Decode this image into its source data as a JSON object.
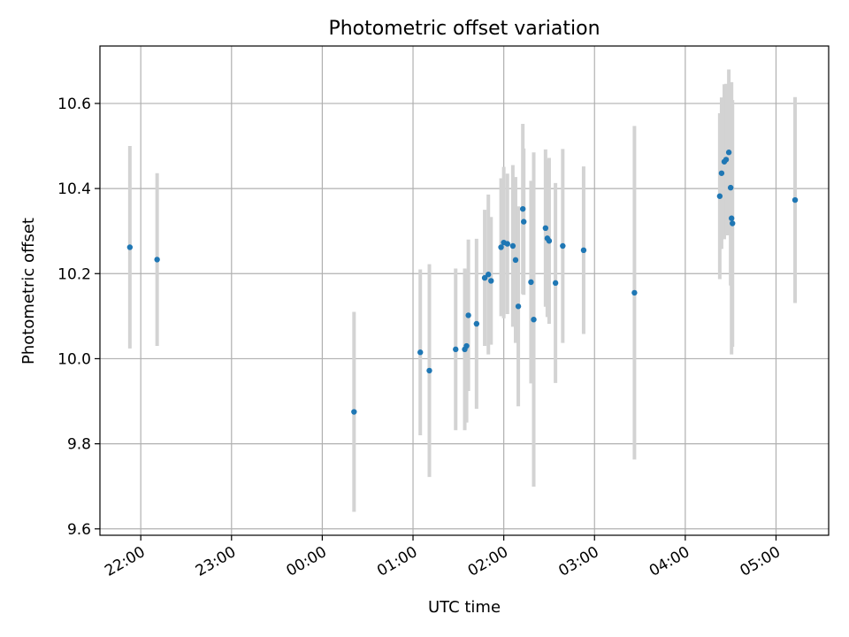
{
  "chart_data": {
    "type": "scatter",
    "title": "Photometric offset variation",
    "xlabel": "UTC time",
    "ylabel": "Photometric offset",
    "x_unit": "hours (UTC, relative to 00:00)",
    "xlim": [
      -2.45,
      5.58
    ],
    "ylim": [
      9.585,
      10.735
    ],
    "x_ticks": [
      -2,
      -1,
      0,
      1,
      2,
      3,
      4,
      5
    ],
    "x_tick_labels": [
      "22:00",
      "23:00",
      "00:00",
      "01:00",
      "02:00",
      "03:00",
      "04:00",
      "05:00"
    ],
    "y_ticks": [
      9.6,
      9.8,
      10.0,
      10.2,
      10.4,
      10.6
    ],
    "y_tick_labels": [
      "9.6",
      "9.8",
      "10.0",
      "10.2",
      "10.4",
      "10.6"
    ],
    "grid": true,
    "marker_color": "#1f77b4",
    "errorbar_color": "#d3d3d3",
    "points": [
      {
        "x": -2.12,
        "y": 10.262,
        "err": 0.238
      },
      {
        "x": -1.82,
        "y": 10.233,
        "err": 0.203
      },
      {
        "x": 0.35,
        "y": 9.875,
        "err": 0.235
      },
      {
        "x": 1.08,
        "y": 10.015,
        "err": 0.195
      },
      {
        "x": 1.18,
        "y": 9.972,
        "err": 0.25
      },
      {
        "x": 1.47,
        "y": 10.022,
        "err": 0.19
      },
      {
        "x": 1.57,
        "y": 10.022,
        "err": 0.19
      },
      {
        "x": 1.59,
        "y": 10.03,
        "err": 0.18
      },
      {
        "x": 1.61,
        "y": 10.102,
        "err": 0.178
      },
      {
        "x": 1.7,
        "y": 10.082,
        "err": 0.2
      },
      {
        "x": 1.79,
        "y": 10.19,
        "err": 0.16
      },
      {
        "x": 1.83,
        "y": 10.198,
        "err": 0.188
      },
      {
        "x": 1.86,
        "y": 10.183,
        "err": 0.15
      },
      {
        "x": 1.97,
        "y": 10.262,
        "err": 0.162
      },
      {
        "x": 2.0,
        "y": 10.273,
        "err": 0.178
      },
      {
        "x": 2.04,
        "y": 10.27,
        "err": 0.165
      },
      {
        "x": 2.1,
        "y": 10.265,
        "err": 0.19
      },
      {
        "x": 2.13,
        "y": 10.232,
        "err": 0.195
      },
      {
        "x": 2.16,
        "y": 10.123,
        "err": 0.235
      },
      {
        "x": 2.21,
        "y": 10.352,
        "err": 0.2
      },
      {
        "x": 2.22,
        "y": 10.322,
        "err": 0.172
      },
      {
        "x": 2.3,
        "y": 10.18,
        "err": 0.238
      },
      {
        "x": 2.33,
        "y": 10.092,
        "err": 0.393
      },
      {
        "x": 2.46,
        "y": 10.307,
        "err": 0.185
      },
      {
        "x": 2.48,
        "y": 10.283,
        "err": 0.185
      },
      {
        "x": 2.5,
        "y": 10.277,
        "err": 0.195
      },
      {
        "x": 2.57,
        "y": 10.178,
        "err": 0.235
      },
      {
        "x": 2.65,
        "y": 10.265,
        "err": 0.228
      },
      {
        "x": 2.88,
        "y": 10.255,
        "err": 0.197
      },
      {
        "x": 3.44,
        "y": 10.155,
        "err": 0.392
      },
      {
        "x": 4.38,
        "y": 10.382,
        "err": 0.195
      },
      {
        "x": 4.4,
        "y": 10.436,
        "err": 0.178
      },
      {
        "x": 4.43,
        "y": 10.463,
        "err": 0.182
      },
      {
        "x": 4.45,
        "y": 10.468,
        "err": 0.178
      },
      {
        "x": 4.48,
        "y": 10.485,
        "err": 0.195
      },
      {
        "x": 4.5,
        "y": 10.402,
        "err": 0.23
      },
      {
        "x": 4.51,
        "y": 10.33,
        "err": 0.32
      },
      {
        "x": 4.52,
        "y": 10.318,
        "err": 0.29
      },
      {
        "x": 5.21,
        "y": 10.373,
        "err": 0.242
      }
    ]
  }
}
